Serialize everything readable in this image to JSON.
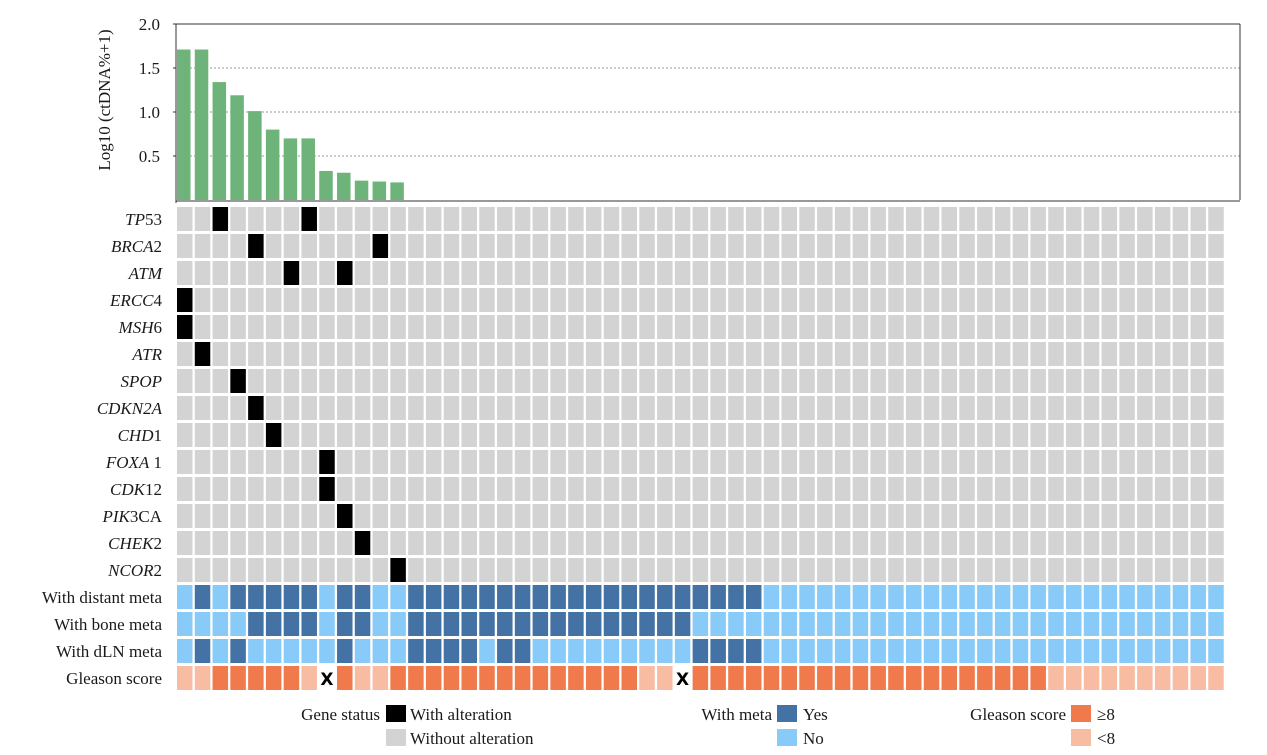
{
  "chart_data": {
    "type": "heatmap",
    "bar_chart": {
      "type": "bar",
      "ylabel": "Log10 (ctDNA%+1)",
      "yticks": [
        "0.5",
        "1.0",
        "1.5",
        "2.0"
      ],
      "ylim": [
        0,
        2.0
      ],
      "grid": "horizontal dotted",
      "values": [
        1.71,
        1.71,
        1.34,
        1.19,
        1.01,
        0.8,
        0.7,
        0.7,
        0.33,
        0.31,
        0.22,
        0.21,
        0.2
      ],
      "color": "#6db37a"
    },
    "n_samples": 59,
    "genes": [
      {
        "prefix": "TP",
        "italic": "TP",
        "rest": "53",
        "altered": [
          2,
          7
        ]
      },
      {
        "italic": "BRCA",
        "rest": "2",
        "altered": [
          4,
          11
        ]
      },
      {
        "italic": "ATM",
        "rest": "",
        "altered": [
          6,
          9
        ]
      },
      {
        "italic": "ERCC",
        "rest": "4",
        "altered": [
          0
        ]
      },
      {
        "italic": "MSH",
        "rest": "6",
        "altered": [
          0
        ]
      },
      {
        "italic": "ATR",
        "rest": "",
        "altered": [
          1
        ]
      },
      {
        "italic": "SPOP",
        "rest": "",
        "altered": [
          3
        ]
      },
      {
        "italic": "CDKN2A",
        "rest": "",
        "altered": [
          4
        ]
      },
      {
        "italic": "CHD",
        "rest": "1",
        "altered": [
          5
        ]
      },
      {
        "italic": "FOXA",
        "rest": " 1",
        "altered": [
          8
        ]
      },
      {
        "italic": "CDK",
        "rest": "12",
        "altered": [
          8
        ]
      },
      {
        "italic": "PIK",
        "rest": "3CA",
        "altered": [
          9
        ]
      },
      {
        "italic": "CHEK",
        "rest": "2",
        "altered": [
          10
        ]
      },
      {
        "italic": "NCOR",
        "rest": "2",
        "altered": [
          12
        ]
      }
    ],
    "clinical_rows": [
      {
        "label": "With distant meta",
        "values": "NYNYYYYYNYYNNYYYYYYYYYYYYYYYYYYYYNNNNNNNNNNNNNNNNNNNNNNNNNN"
      },
      {
        "label": "With bone meta",
        "values": "NNNNYYYYNYYNNYYYYYYYYYYYYYYYYNNNNNNNNNNNNNNNNNNNNNNNNNNNNNN"
      },
      {
        "label": "With dLN meta",
        "values": "NYNYNNNNNYNNNYYYYNYYNNNNNNNNNYYYYNNNNNNNNNNNNNNNNNNNNNNNNNN"
      }
    ],
    "gleason": {
      "label": "Gleason score",
      "values": "LLHHHHHLXHLLHHHHHHHHHHHHHHLLXHHHHHHHHHHHHHHHHHHHHLLLLLLLLL",
      "missing_mark": "X"
    },
    "colors": {
      "altered": "#000000",
      "not_altered": "#d3d3d3",
      "meta_yes": "#4472a4",
      "meta_no": "#88caf8",
      "gleason_high": "#f07a4c",
      "gleason_low": "#f8bca3",
      "bar": "#6db37a"
    }
  },
  "legend": {
    "gene_status": {
      "title": "Gene status",
      "with_alteration": "With alteration",
      "without_alteration": "Without alteration"
    },
    "with_meta": {
      "title": "With meta",
      "yes": "Yes",
      "no": "No"
    },
    "gleason_score": {
      "title": "Gleason score",
      "high": "≥8",
      "low": "<8"
    }
  }
}
